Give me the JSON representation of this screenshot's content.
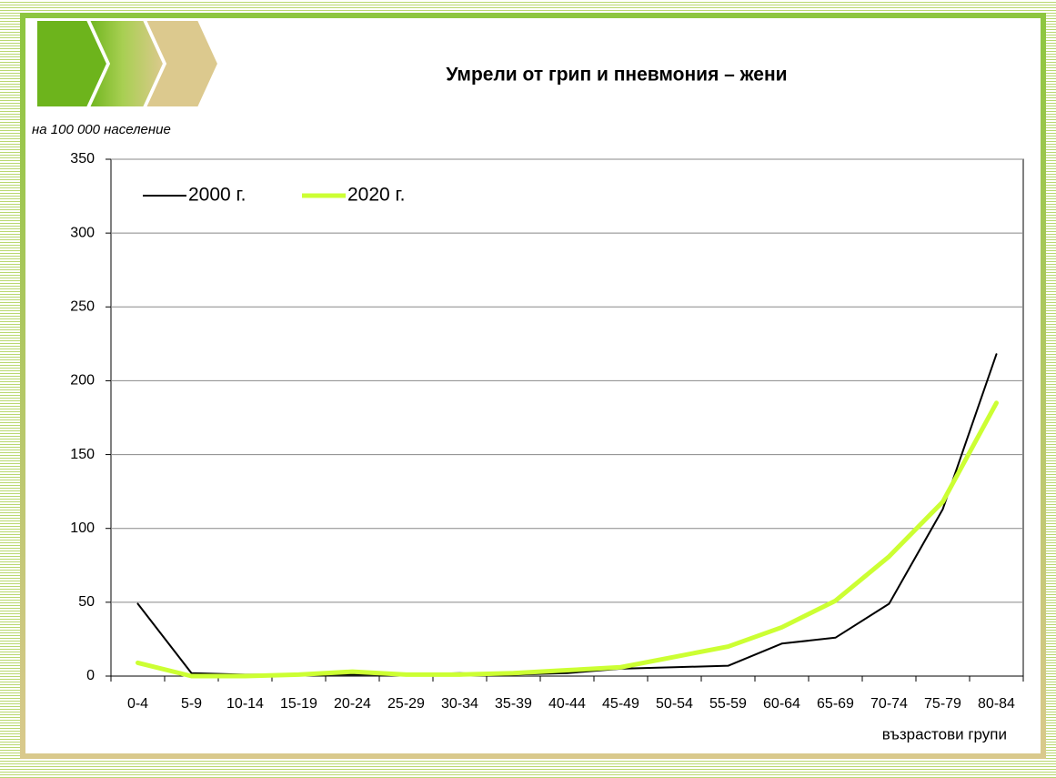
{
  "chart_data": {
    "type": "line",
    "title": "Умрели от грип и пневмония – жени",
    "y_label": "на 100 000 население",
    "x_label": "възрастови групи",
    "categories": [
      "0-4",
      "5-9",
      "10-14",
      "15-19",
      "20-24",
      "25-29",
      "30-34",
      "35-39",
      "40-44",
      "45-49",
      "50-54",
      "55-59",
      "60-64",
      "65-69",
      "70-74",
      "75-79",
      "80-84"
    ],
    "series": [
      {
        "name": "2000 г.",
        "color": "#000000",
        "values": [
          49,
          2,
          1,
          1,
          1,
          1,
          2,
          1,
          2,
          5,
          6,
          7,
          22,
          26,
          49,
          113,
          218
        ]
      },
      {
        "name": "2020 г.",
        "color": "#ccff33",
        "values": [
          9,
          0,
          0,
          1,
          3,
          1,
          1,
          2,
          4,
          6,
          13,
          20,
          33,
          51,
          81,
          118,
          185
        ]
      }
    ],
    "ylim": [
      0,
      350
    ],
    "yticks": [
      0,
      50,
      100,
      150,
      200,
      250,
      300,
      350
    ],
    "grid": true,
    "legend": "upper left"
  }
}
